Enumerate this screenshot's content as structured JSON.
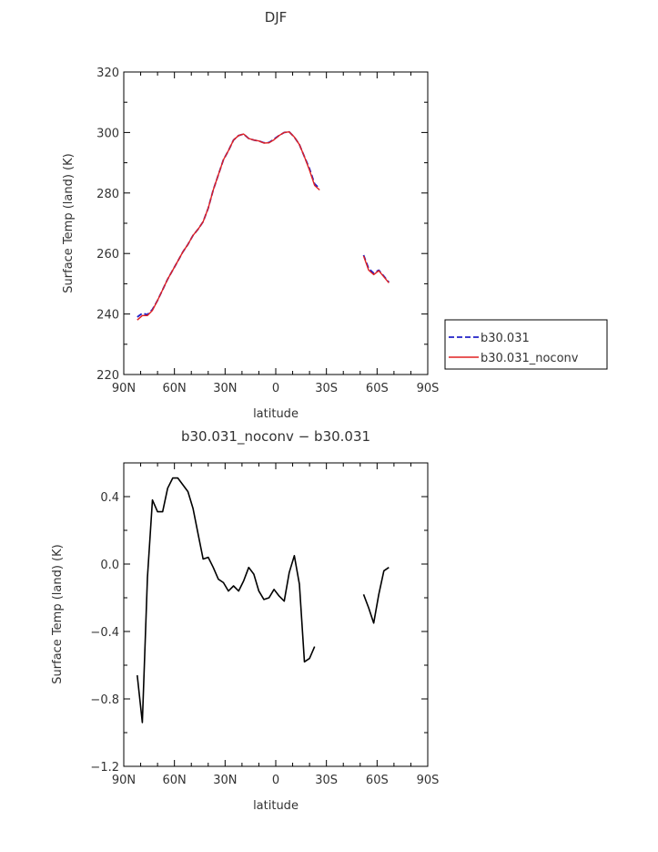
{
  "colors": {
    "series1": "#2020c8",
    "series2": "#e02020",
    "diff": "#000000",
    "frame": "#000000"
  },
  "chart_data": [
    {
      "type": "line",
      "title": "DJF",
      "xlabel": "latitude",
      "ylabel": "Surface Temp (land) (K)",
      "xticks": [
        "90N",
        "60N",
        "30N",
        "0",
        "30S",
        "60S",
        "90S"
      ],
      "xtick_values": [
        90,
        60,
        30,
        0,
        -30,
        -60,
        -90
      ],
      "xlim": [
        90,
        -90
      ],
      "ylim": [
        220,
        320
      ],
      "yticks": [
        220,
        240,
        260,
        280,
        300,
        320
      ],
      "legend_position": "right",
      "series": [
        {
          "name": "b30.031",
          "style": "dashed",
          "segments": [
            [
              [
                82,
                239
              ],
              [
                79,
                240.2
              ],
              [
                76,
                239.8
              ],
              [
                73,
                241.5
              ],
              [
                70,
                244.5
              ],
              [
                67,
                248
              ],
              [
                64,
                251.5
              ],
              [
                61,
                254.5
              ],
              [
                58,
                257.5
              ],
              [
                55,
                260.5
              ],
              [
                52,
                263
              ],
              [
                49,
                266
              ],
              [
                46,
                268
              ],
              [
                43,
                270.5
              ],
              [
                40,
                275
              ],
              [
                37,
                281
              ],
              [
                34,
                286
              ],
              [
                31,
                291
              ],
              [
                28,
                294
              ],
              [
                25,
                297.5
              ],
              [
                22,
                299
              ],
              [
                19,
                299.5
              ],
              [
                16,
                298
              ],
              [
                13,
                297.5
              ],
              [
                10,
                297.2
              ],
              [
                7,
                296.6
              ],
              [
                4,
                296.7
              ],
              [
                1,
                297.8
              ],
              [
                -2,
                299
              ],
              [
                -5,
                300
              ],
              [
                -8,
                300.2
              ],
              [
                -11,
                298.5
              ],
              [
                -14,
                296
              ],
              [
                -17,
                292
              ],
              [
                -20,
                288
              ],
              [
                -23,
                283
              ],
              [
                -26,
                281.5
              ]
            ],
            [
              [
                -52,
                259.5
              ],
              [
                -55,
                255
              ],
              [
                -58,
                253.5
              ],
              [
                -61,
                254.5
              ],
              [
                -64,
                252.5
              ],
              [
                -67,
                250.5
              ]
            ]
          ]
        },
        {
          "name": "b30.031_noconv",
          "style": "solid",
          "segments": [
            [
              [
                82,
                238
              ],
              [
                79,
                239.5
              ],
              [
                76,
                239.5
              ],
              [
                73,
                241.2
              ],
              [
                70,
                244.5
              ],
              [
                67,
                248
              ],
              [
                64,
                251.5
              ],
              [
                61,
                254.5
              ],
              [
                58,
                257.5
              ],
              [
                55,
                260.5
              ],
              [
                52,
                263
              ],
              [
                49,
                266
              ],
              [
                46,
                268
              ],
              [
                43,
                270.5
              ],
              [
                40,
                275
              ],
              [
                37,
                281
              ],
              [
                34,
                286
              ],
              [
                31,
                291
              ],
              [
                28,
                294
              ],
              [
                25,
                297.5
              ],
              [
                22,
                299
              ],
              [
                19,
                299.5
              ],
              [
                16,
                298
              ],
              [
                13,
                297.5
              ],
              [
                10,
                297.2
              ],
              [
                7,
                296.5
              ],
              [
                4,
                296.6
              ],
              [
                1,
                297.6
              ],
              [
                -2,
                299
              ],
              [
                -5,
                300
              ],
              [
                -8,
                300.2
              ],
              [
                -11,
                298.5
              ],
              [
                -14,
                296
              ],
              [
                -17,
                292
              ],
              [
                -20,
                287.5
              ],
              [
                -23,
                282.5
              ],
              [
                -26,
                281
              ]
            ],
            [
              [
                -52,
                259.2
              ],
              [
                -55,
                254.5
              ],
              [
                -58,
                253
              ],
              [
                -61,
                254.3
              ],
              [
                -64,
                252.3
              ],
              [
                -67,
                250.3
              ]
            ]
          ]
        }
      ]
    },
    {
      "type": "line",
      "title": "b30.031_noconv − b30.031",
      "xlabel": "latitude",
      "ylabel": "Surface Temp (land) (K)",
      "xticks": [
        "90N",
        "60N",
        "30N",
        "0",
        "30S",
        "60S",
        "90S"
      ],
      "xtick_values": [
        90,
        60,
        30,
        0,
        -30,
        -60,
        -90
      ],
      "xlim": [
        90,
        -90
      ],
      "ylim": [
        -1.2,
        0.6
      ],
      "yticks": [
        -1.2,
        -0.8,
        -0.4,
        0.0,
        0.4
      ],
      "ytick_labels": [
        "−1.2",
        "−0.8",
        "−0.4",
        "0.0",
        "0.4"
      ],
      "series": [
        {
          "style": "solid",
          "segments": [
            [
              [
                82,
                -0.66
              ],
              [
                79,
                -0.94
              ],
              [
                76,
                -0.08
              ],
              [
                73,
                0.38
              ],
              [
                70,
                0.31
              ],
              [
                67,
                0.31
              ],
              [
                64,
                0.45
              ],
              [
                61,
                0.51
              ],
              [
                58,
                0.51
              ],
              [
                55,
                0.47
              ],
              [
                52,
                0.43
              ],
              [
                49,
                0.33
              ],
              [
                46,
                0.18
              ],
              [
                43,
                0.03
              ],
              [
                40,
                0.04
              ],
              [
                37,
                -0.02
              ],
              [
                34,
                -0.09
              ],
              [
                31,
                -0.11
              ],
              [
                28,
                -0.16
              ],
              [
                25,
                -0.13
              ],
              [
                22,
                -0.16
              ],
              [
                19,
                -0.1
              ],
              [
                16,
                -0.02
              ],
              [
                13,
                -0.06
              ],
              [
                10,
                -0.16
              ],
              [
                7,
                -0.21
              ],
              [
                4,
                -0.2
              ],
              [
                1,
                -0.15
              ],
              [
                -2,
                -0.19
              ],
              [
                -5,
                -0.22
              ],
              [
                -8,
                -0.05
              ],
              [
                -11,
                0.05
              ],
              [
                -14,
                -0.12
              ],
              [
                -17,
                -0.58
              ],
              [
                -20,
                -0.56
              ],
              [
                -23,
                -0.49
              ]
            ],
            [
              [
                -52,
                -0.18
              ],
              [
                -55,
                -0.26
              ],
              [
                -58,
                -0.35
              ],
              [
                -61,
                -0.18
              ],
              [
                -64,
                -0.04
              ],
              [
                -67,
                -0.02
              ]
            ]
          ]
        }
      ]
    }
  ]
}
